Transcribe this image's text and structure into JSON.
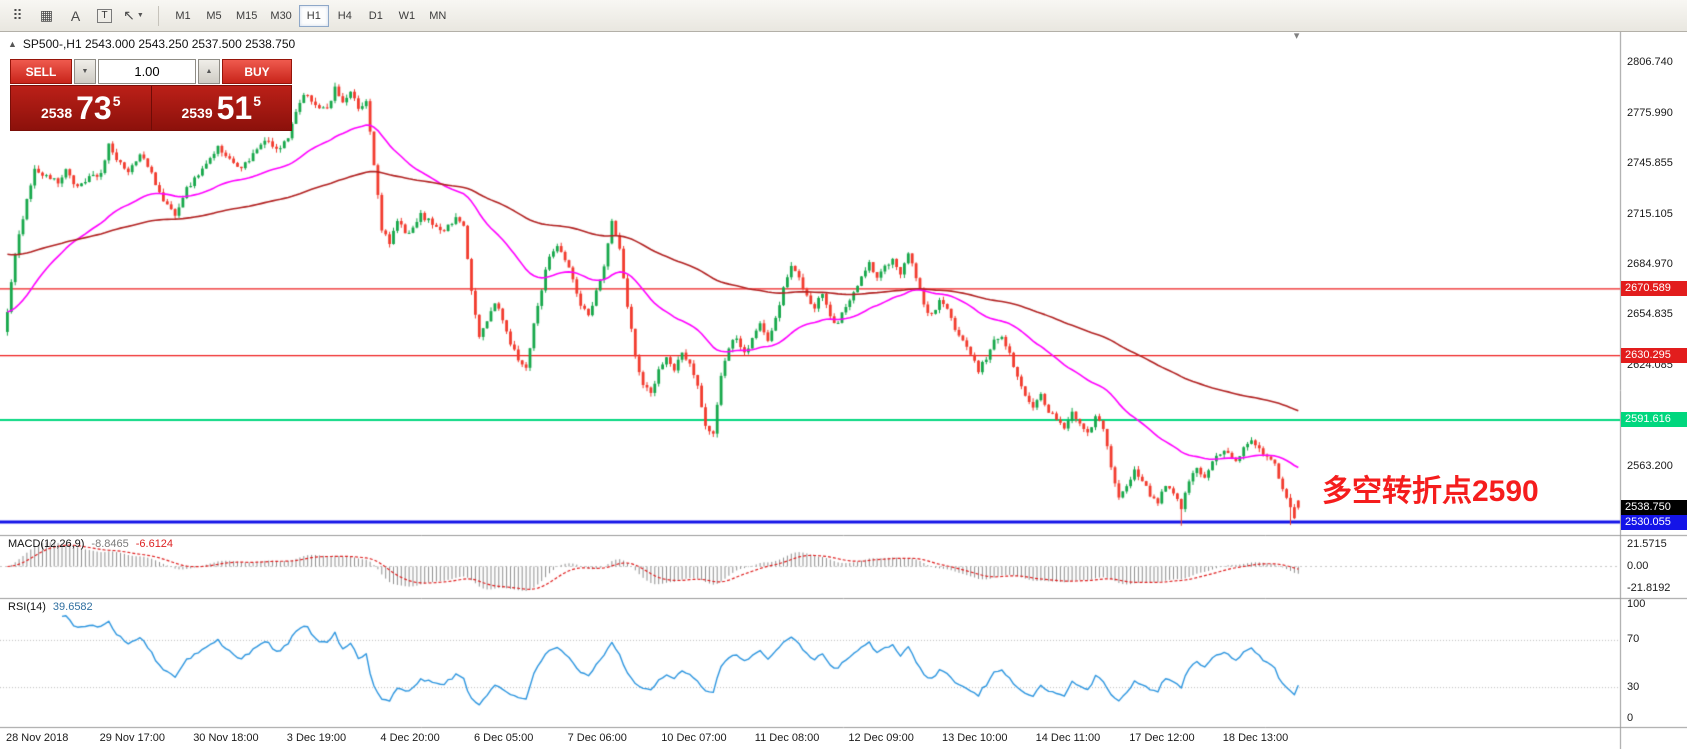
{
  "toolbar": {
    "icons": [
      {
        "name": "toolbar-handle-icon",
        "glyph": "⠿"
      },
      {
        "name": "grid-icon",
        "glyph": "▦"
      },
      {
        "name": "font-icon",
        "glyph": "A"
      },
      {
        "name": "text-box-icon",
        "glyph": "T",
        "boxed": true
      },
      {
        "name": "pointer-tool-icon",
        "glyph": "↖",
        "caret": "▼"
      }
    ],
    "timeframes": [
      "M1",
      "M5",
      "M15",
      "M30",
      "H1",
      "H4",
      "D1",
      "W1",
      "MN"
    ],
    "active_timeframe": "H1"
  },
  "chart": {
    "collapse_arrow": "▲",
    "symbol_header": "SP500-,H1  2543.000 2543.250 2537.500 2538.750",
    "bar_marker": "▾",
    "trade_widget": {
      "sell_label": "SELL",
      "buy_label": "BUY",
      "lot_value": "1.00",
      "lot_down_glyph": "▼",
      "lot_up_glyph": "▲",
      "sell_price": {
        "small": "2538",
        "big": "73",
        "sup": "5"
      },
      "buy_price": {
        "small": "2539",
        "big": "51",
        "sup": "5"
      }
    },
    "annotation": {
      "text": "多空转折点2590",
      "color": "#f51d1d"
    },
    "hlines": [
      {
        "price": 2670.589,
        "color": "#ee1c1c",
        "width": 1.3
      },
      {
        "price": 2630.295,
        "color": "#ee1c1c",
        "width": 1.3
      },
      {
        "price": 2591.616,
        "color": "#00d77e",
        "width": 2
      },
      {
        "price": 2530.055,
        "color": "#1414e8",
        "width": 3
      }
    ],
    "axis": {
      "price_labels": [
        "2806.740",
        "2775.990",
        "2745.855",
        "2715.105",
        "2684.970",
        "2654.835",
        "2624.085",
        "2563.200"
      ],
      "tags": [
        {
          "label": "2670.589",
          "price": 2670.589,
          "bg": "#e21d1d",
          "fg": "#ffffff"
        },
        {
          "label": "2630.295",
          "price": 2630.295,
          "bg": "#e21d1d",
          "fg": "#ffffff"
        },
        {
          "label": "2591.616",
          "price": 2591.616,
          "bg": "#00d77e",
          "fg": "#ffffff"
        },
        {
          "label": "2538.750",
          "price": 2538.75,
          "bg": "#000000",
          "fg": "#ffffff"
        },
        {
          "label": "2530.055",
          "price": 2530.055,
          "bg": "#1414e8",
          "fg": "#ffffff"
        }
      ]
    },
    "time_labels": [
      {
        "index": 0,
        "label": "28 Nov 2018"
      },
      {
        "index": 24,
        "label": "29 Nov 17:00"
      },
      {
        "index": 48,
        "label": "30 Nov 18:00"
      },
      {
        "index": 72,
        "label": "3 Dec 19:00"
      },
      {
        "index": 96,
        "label": "4 Dec 20:00"
      },
      {
        "index": 120,
        "label": "6 Dec 05:00"
      },
      {
        "index": 144,
        "label": "7 Dec 06:00"
      },
      {
        "index": 168,
        "label": "10 Dec 07:00"
      },
      {
        "index": 192,
        "label": "11 Dec 08:00"
      },
      {
        "index": 216,
        "label": "12 Dec 09:00"
      },
      {
        "index": 240,
        "label": "13 Dec 10:00"
      },
      {
        "index": 264,
        "label": "14 Dec 11:00"
      },
      {
        "index": 288,
        "label": "17 Dec 12:00"
      },
      {
        "index": 312,
        "label": "18 Dec 13:00"
      }
    ]
  },
  "indicators": {
    "macd": {
      "title": "MACD(12,26,9)",
      "main_value": "-8.8465",
      "signal_value": "-6.6124",
      "axis_labels": [
        "21.5715",
        "0.00",
        "-21.8192"
      ],
      "hist_color": "#8f8f8f",
      "signal_color": "#e02020"
    },
    "rsi": {
      "title": "RSI(14)",
      "value": "39.6582",
      "axis_labels": [
        "100",
        "70",
        "30",
        "0"
      ],
      "levels": [
        70,
        30
      ],
      "color": "#2f97e0"
    }
  },
  "chart_data": {
    "type": "candlestick",
    "symbol": "SP500-",
    "timeframe": "H1",
    "last_ohlc": {
      "open": 2543.0,
      "high": 2543.25,
      "low": 2537.5,
      "close": 2538.75
    },
    "bar_count": 332,
    "colors": {
      "up": "#17a84b",
      "down": "#f23b2e"
    },
    "ma_fast": {
      "period": 40,
      "color": "#ff00ff"
    },
    "ma_slow": {
      "period": 130,
      "seed": 2692,
      "color": "#b22222"
    },
    "wick_events": [
      {
        "index": 301,
        "low": 2527.8
      },
      {
        "index": 329,
        "low": 2528.2
      }
    ],
    "anchors": [
      [
        0,
        2658
      ],
      [
        2,
        2690
      ],
      [
        3,
        2702
      ],
      [
        5,
        2726
      ],
      [
        7,
        2742
      ],
      [
        10,
        2739
      ],
      [
        13,
        2734
      ],
      [
        15,
        2743
      ],
      [
        18,
        2731
      ],
      [
        21,
        2737
      ],
      [
        24,
        2740
      ],
      [
        26,
        2758
      ],
      [
        28,
        2747
      ],
      [
        31,
        2742
      ],
      [
        34,
        2751
      ],
      [
        37,
        2741
      ],
      [
        40,
        2722
      ],
      [
        43,
        2716
      ],
      [
        46,
        2731
      ],
      [
        48,
        2737
      ],
      [
        51,
        2746
      ],
      [
        54,
        2756
      ],
      [
        57,
        2748
      ],
      [
        60,
        2744
      ],
      [
        63,
        2751
      ],
      [
        66,
        2760
      ],
      [
        69,
        2754
      ],
      [
        72,
        2761
      ],
      [
        74,
        2776
      ],
      [
        76,
        2789
      ],
      [
        79,
        2782
      ],
      [
        82,
        2778
      ],
      [
        84,
        2791
      ],
      [
        86,
        2784
      ],
      [
        88,
        2789
      ],
      [
        90,
        2779
      ],
      [
        92,
        2783
      ],
      [
        94,
        2746
      ],
      [
        96,
        2706
      ],
      [
        98,
        2698
      ],
      [
        100,
        2711
      ],
      [
        103,
        2703
      ],
      [
        106,
        2715
      ],
      [
        109,
        2710
      ],
      [
        112,
        2706
      ],
      [
        115,
        2713
      ],
      [
        117,
        2710
      ],
      [
        119,
        2668
      ],
      [
        121,
        2642
      ],
      [
        123,
        2651
      ],
      [
        125,
        2663
      ],
      [
        127,
        2652
      ],
      [
        129,
        2637
      ],
      [
        131,
        2628
      ],
      [
        133,
        2623
      ],
      [
        135,
        2649
      ],
      [
        137,
        2671
      ],
      [
        139,
        2691
      ],
      [
        141,
        2697
      ],
      [
        143,
        2687
      ],
      [
        145,
        2677
      ],
      [
        147,
        2661
      ],
      [
        149,
        2655
      ],
      [
        151,
        2669
      ],
      [
        153,
        2685
      ],
      [
        155,
        2711
      ],
      [
        157,
        2694
      ],
      [
        159,
        2661
      ],
      [
        161,
        2629
      ],
      [
        163,
        2614
      ],
      [
        165,
        2609
      ],
      [
        167,
        2621
      ],
      [
        169,
        2629
      ],
      [
        171,
        2621
      ],
      [
        173,
        2633
      ],
      [
        175,
        2625
      ],
      [
        177,
        2611
      ],
      [
        179,
        2587
      ],
      [
        181,
        2584
      ],
      [
        183,
        2619
      ],
      [
        185,
        2636
      ],
      [
        187,
        2641
      ],
      [
        189,
        2631
      ],
      [
        191,
        2641
      ],
      [
        193,
        2649
      ],
      [
        195,
        2639
      ],
      [
        197,
        2653
      ],
      [
        199,
        2671
      ],
      [
        201,
        2683
      ],
      [
        203,
        2677
      ],
      [
        205,
        2667
      ],
      [
        207,
        2659
      ],
      [
        209,
        2669
      ],
      [
        211,
        2654
      ],
      [
        213,
        2649
      ],
      [
        215,
        2661
      ],
      [
        217,
        2669
      ],
      [
        219,
        2677
      ],
      [
        221,
        2686
      ],
      [
        223,
        2677
      ],
      [
        225,
        2683
      ],
      [
        227,
        2689
      ],
      [
        229,
        2679
      ],
      [
        231,
        2693
      ],
      [
        233,
        2677
      ],
      [
        235,
        2661
      ],
      [
        237,
        2654
      ],
      [
        239,
        2663
      ],
      [
        241,
        2657
      ],
      [
        243,
        2647
      ],
      [
        245,
        2639
      ],
      [
        247,
        2631
      ],
      [
        249,
        2621
      ],
      [
        251,
        2629
      ],
      [
        253,
        2639
      ],
      [
        255,
        2643
      ],
      [
        257,
        2631
      ],
      [
        259,
        2617
      ],
      [
        261,
        2607
      ],
      [
        263,
        2599
      ],
      [
        265,
        2606
      ],
      [
        267,
        2597
      ],
      [
        269,
        2591
      ],
      [
        271,
        2587
      ],
      [
        273,
        2596
      ],
      [
        275,
        2589
      ],
      [
        277,
        2584
      ],
      [
        279,
        2593
      ],
      [
        281,
        2587
      ],
      [
        283,
        2563
      ],
      [
        285,
        2544
      ],
      [
        287,
        2553
      ],
      [
        289,
        2561
      ],
      [
        291,
        2554
      ],
      [
        293,
        2547
      ],
      [
        295,
        2541
      ],
      [
        297,
        2553
      ],
      [
        299,
        2547
      ],
      [
        301,
        2538
      ],
      [
        303,
        2556
      ],
      [
        305,
        2563
      ],
      [
        307,
        2557
      ],
      [
        309,
        2566
      ],
      [
        311,
        2571
      ],
      [
        313,
        2573
      ],
      [
        315,
        2567
      ],
      [
        317,
        2575
      ],
      [
        319,
        2579
      ],
      [
        321,
        2574
      ],
      [
        323,
        2569
      ],
      [
        325,
        2564
      ],
      [
        327,
        2551
      ],
      [
        329,
        2539
      ],
      [
        330,
        2532
      ],
      [
        331,
        2538.75
      ]
    ]
  }
}
